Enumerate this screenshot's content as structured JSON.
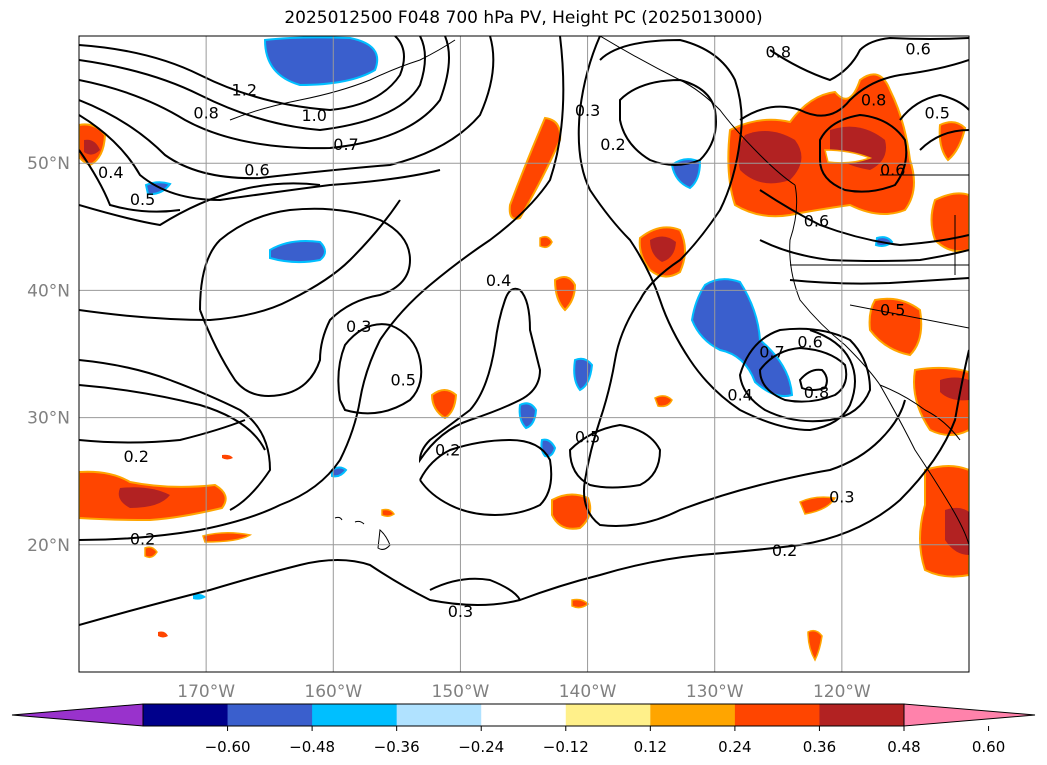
{
  "title": "2025012500 F048 700 hPa PV, Height PC (2025013000)",
  "map": {
    "lon_range": [
      -180,
      -110
    ],
    "lat_range": [
      10,
      60
    ],
    "lon_ticks": [
      {
        "value": -170,
        "label": "170°W"
      },
      {
        "value": -160,
        "label": "160°W"
      },
      {
        "value": -150,
        "label": "150°W"
      },
      {
        "value": -140,
        "label": "140°W"
      },
      {
        "value": -130,
        "label": "130°W"
      },
      {
        "value": -120,
        "label": "120°W"
      }
    ],
    "lat_ticks": [
      {
        "value": 20,
        "label": "20°N"
      },
      {
        "value": 30,
        "label": "30°N"
      },
      {
        "value": 40,
        "label": "40°N"
      },
      {
        "value": 50,
        "label": "50°N"
      }
    ],
    "grid": true,
    "coastlines": true,
    "contour_labels": [
      {
        "text": "1.2",
        "lon": -167.0,
        "lat": 55.8
      },
      {
        "text": "1.0",
        "lon": -161.5,
        "lat": 53.8
      },
      {
        "text": "0.8",
        "lon": -170.0,
        "lat": 54.0
      },
      {
        "text": "0.7",
        "lon": -159.0,
        "lat": 51.5
      },
      {
        "text": "0.6",
        "lon": -166.0,
        "lat": 49.5
      },
      {
        "text": "0.4",
        "lon": -177.5,
        "lat": 49.3
      },
      {
        "text": "0.5",
        "lon": -175.0,
        "lat": 47.2
      },
      {
        "text": "0.3",
        "lon": -158.0,
        "lat": 37.2
      },
      {
        "text": "0.4",
        "lon": -147.0,
        "lat": 40.8
      },
      {
        "text": "0.5",
        "lon": -154.5,
        "lat": 33.0
      },
      {
        "text": "0.2",
        "lon": -151.0,
        "lat": 27.5
      },
      {
        "text": "0.5",
        "lon": -140.0,
        "lat": 28.5
      },
      {
        "text": "0.2",
        "lon": -175.5,
        "lat": 27.0
      },
      {
        "text": "0.2",
        "lon": -175.0,
        "lat": 20.5
      },
      {
        "text": "0.3",
        "lon": -150.0,
        "lat": 14.8
      },
      {
        "text": "0.3",
        "lon": -140.0,
        "lat": 54.2
      },
      {
        "text": "0.2",
        "lon": -138.0,
        "lat": 51.5
      },
      {
        "text": "0.8",
        "lon": -125.0,
        "lat": 58.8
      },
      {
        "text": "0.6",
        "lon": -114.0,
        "lat": 59.0
      },
      {
        "text": "0.8",
        "lon": -117.5,
        "lat": 55.0
      },
      {
        "text": "0.5",
        "lon": -112.5,
        "lat": 54.0
      },
      {
        "text": "0.6",
        "lon": -116.0,
        "lat": 49.5
      },
      {
        "text": "0.6",
        "lon": -122.0,
        "lat": 45.5
      },
      {
        "text": "0.5",
        "lon": -116.0,
        "lat": 38.5
      },
      {
        "text": "0.7",
        "lon": -125.5,
        "lat": 35.2
      },
      {
        "text": "0.6",
        "lon": -122.5,
        "lat": 36.0
      },
      {
        "text": "0.8",
        "lon": -122.0,
        "lat": 32.0
      },
      {
        "text": "0.4",
        "lon": -128.0,
        "lat": 31.8
      },
      {
        "text": "0.3",
        "lon": -120.0,
        "lat": 23.8
      },
      {
        "text": "0.2",
        "lon": -124.5,
        "lat": 19.6
      }
    ]
  },
  "colorbar": {
    "tick_labels": [
      "−0.60",
      "−0.48",
      "−0.36",
      "−0.24",
      "−0.12",
      "0.12",
      "0.24",
      "0.36",
      "0.48",
      "0.60"
    ],
    "colors": [
      "#9932cc",
      "#00008b",
      "#3a5fcd",
      "#00bfff",
      "#b0e2ff",
      "#ffffff",
      "#fff08a",
      "#ffa500",
      "#ff4500",
      "#b22222",
      "#ff82ab"
    ],
    "extend": "both"
  }
}
